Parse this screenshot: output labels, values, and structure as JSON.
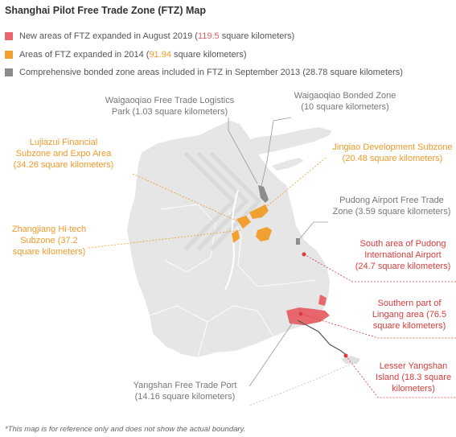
{
  "title": "Shanghai Pilot Free Trade Zone (FTZ) Map",
  "colors": {
    "new_2019": "#e8676d",
    "expanded_2014": "#f0a030",
    "bonded_2013": "#8c8c8c",
    "land": "#e6e6e6",
    "gray_label": "#777777",
    "orange_label": "#f09a2a",
    "red_label": "#d83c3c"
  },
  "legend": [
    {
      "swatch": "new_2019",
      "pre": "New areas of FTZ expanded in August 2019 (",
      "value": "119.5",
      "post": " square kilometers)",
      "value_color": "red"
    },
    {
      "swatch": "expanded_2014",
      "pre": "Areas of FTZ expanded in 2014 (",
      "value": "91.94",
      "post": " square kilometers)",
      "value_color": "orange"
    },
    {
      "swatch": "bonded_2013",
      "pre": "Comprehensive bonded zone areas included in FTZ in September 2013 (",
      "value": "28.78",
      "post": " square kilometers)",
      "value_color": "gray"
    }
  ],
  "labels": {
    "waigaoqiao_logistics": [
      "Waigaoqiao Free Trade Logistics",
      "Park (1.03 square kilometers)"
    ],
    "waigaoqiao_bonded": [
      "Waigaoqiao Bonded Zone",
      "(10 square kilometers)"
    ],
    "lujiazui": [
      "Lujiazui Financial",
      "Subzone and Expo Area",
      "(34.26 square kilometers)"
    ],
    "jinqiao": [
      "Jingiao Development Subzone",
      "(20.48 square kilometers)"
    ],
    "zhangjiang": [
      "Zhangjiang Hi-tech",
      "Subzone (37.2",
      "square kilometers)"
    ],
    "pudong_airport_ftz": [
      "Pudong Airport Free Trade",
      "Zone (3.59 square kilometers)"
    ],
    "south_pudong": [
      "South area of Pudong",
      "International Airport",
      "(24.7 square kilometers)"
    ],
    "lingang": [
      "Southern part of",
      "Lingang area (76.5",
      "square kilometers)"
    ],
    "lesser_yangshan": [
      "Lesser Yangshan",
      "Island (18.3 square",
      "kilometers)"
    ],
    "yangshan_port": [
      "Yangshan Free Trade Port",
      "(14.16 square kilometers)"
    ]
  },
  "footnote": "*This map is for reference only and does not show the actual boundary."
}
